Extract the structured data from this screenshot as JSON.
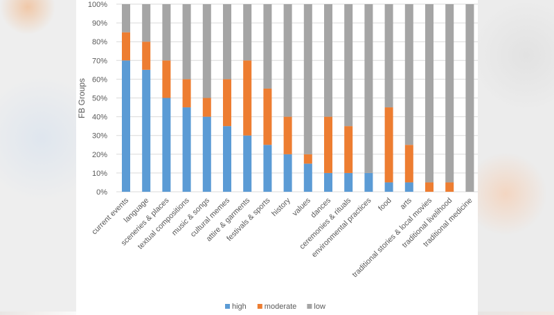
{
  "chart_data": {
    "type": "bar",
    "stacked": true,
    "percent": true,
    "ylabel": "FB Groups",
    "xlabel": "",
    "ylim": [
      0,
      100
    ],
    "yticks": [
      "0%",
      "10%",
      "20%",
      "30%",
      "40%",
      "50%",
      "60%",
      "70%",
      "80%",
      "90%",
      "100%"
    ],
    "grid": true,
    "legend": "bottom",
    "categories": [
      "current events",
      "language",
      "sceneries & places",
      "textual compositions",
      "music & songs",
      "cultural memes",
      "attire & garments",
      "festivals & sports",
      "history",
      "values",
      "dances",
      "ceremonies & rituals",
      "environmental practices",
      "food",
      "arts",
      "traditional stories & local movies",
      "traditional livelihood",
      "traditional medicine"
    ],
    "series": [
      {
        "name": "high",
        "color": "#5b9bd5",
        "values": [
          70,
          65,
          50,
          45,
          40,
          35,
          30,
          25,
          20,
          15,
          10,
          10,
          10,
          5,
          5,
          0,
          0,
          0
        ]
      },
      {
        "name": "moderate",
        "color": "#ed7d31",
        "values": [
          15,
          15,
          20,
          15,
          10,
          25,
          40,
          30,
          20,
          5,
          30,
          25,
          0,
          40,
          20,
          5,
          5,
          0
        ]
      },
      {
        "name": "low",
        "color": "#a5a5a5",
        "values": [
          15,
          20,
          30,
          40,
          50,
          40,
          30,
          45,
          60,
          80,
          60,
          65,
          90,
          55,
          75,
          95,
          95,
          100
        ]
      }
    ]
  }
}
